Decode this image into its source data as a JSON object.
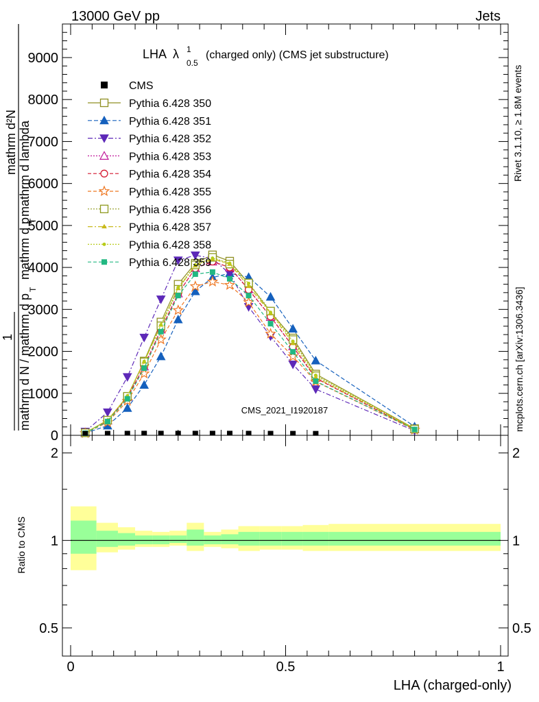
{
  "header": {
    "left": "13000 GeV pp",
    "right": "Jets"
  },
  "plot_title": {
    "main": "LHA",
    "lambda": "λ",
    "sup": "1",
    "sub": "0.5",
    "rest": "(charged only) (CMS jet substructure)"
  },
  "side_labels": {
    "rivet": "Rivet 3.1.10, ≥ 1.8M events",
    "mcplots": "mcplots.cern.ch [arXiv:1306.3436]"
  },
  "watermark": "CMS_2021_I1920187",
  "ylabel": {
    "numerator": "mathrm d²N",
    "lhs_one": "1",
    "lhs_den": "mathrm d N / mathrm d p",
    "lhs_sub": "T",
    "den_part1": "mathrm d p",
    "den_sub": "T",
    "den_part2": "mathrm d lambda"
  },
  "ratio_ylabel": "Ratio to CMS",
  "chart_data": {
    "type": "line",
    "xlabel": "LHA (charged-only)",
    "ylabel": "1 / (mathrm d N / mathrm d p_T) · mathrm d²N / (mathrm d p_T mathrm d lambda)",
    "xlim": [
      0,
      1
    ],
    "ylim": [
      0,
      9800
    ],
    "x_ticks": [
      "0",
      "0.5",
      "1"
    ],
    "y_ticks": [
      "0",
      "1000",
      "2000",
      "3000",
      "4000",
      "5000",
      "6000",
      "7000",
      "8000",
      "9000"
    ],
    "x_centers": [
      0.034,
      0.086,
      0.132,
      0.171,
      0.21,
      0.25,
      0.29,
      0.33,
      0.37,
      0.414,
      0.465,
      0.517,
      0.57,
      0.8
    ],
    "reference": {
      "name": "CMS",
      "x": [
        0.034,
        0.086,
        0.132,
        0.171,
        0.21,
        0.25,
        0.29,
        0.33,
        0.37,
        0.414,
        0.465,
        0.517,
        0.57
      ],
      "values": [
        5,
        8,
        9,
        10,
        10,
        10,
        10,
        10,
        10,
        9,
        8,
        7,
        6
      ]
    },
    "series": [
      {
        "name": "Pythia 6.428 350",
        "color": "#8f8f22",
        "dash": "",
        "marker": "square-open",
        "values": [
          60,
          360,
          920,
          1770,
          2700,
          3600,
          4100,
          4300,
          4150,
          3620,
          2930,
          2320,
          1460,
          160
        ]
      },
      {
        "name": "Pythia 6.428 351",
        "color": "#1560bd",
        "dash": "6,3",
        "marker": "triangle-up",
        "values": [
          50,
          230,
          650,
          1200,
          1880,
          2760,
          3430,
          3760,
          3860,
          3770,
          3300,
          2540,
          1780,
          210
        ]
      },
      {
        "name": "Pythia 6.428 352",
        "color": "#5d28b8",
        "dash": "7,3,2,3",
        "marker": "triangle-down",
        "values": [
          90,
          550,
          1390,
          2330,
          3240,
          4170,
          4290,
          4210,
          3850,
          3060,
          2360,
          1690,
          1100,
          110
        ]
      },
      {
        "name": "Pythia 6.428 353",
        "color": "#c0189a",
        "dash": "2,2",
        "marker": "triangle-open",
        "values": [
          60,
          350,
          910,
          1640,
          2520,
          3380,
          3980,
          4140,
          4000,
          3480,
          2820,
          2120,
          1370,
          140
        ]
      },
      {
        "name": "Pythia 6.428 354",
        "color": "#d4162f",
        "dash": "5,3",
        "marker": "circle-open",
        "values": [
          60,
          350,
          910,
          1640,
          2520,
          3380,
          3980,
          4140,
          4000,
          3470,
          2830,
          2110,
          1360,
          140
        ]
      },
      {
        "name": "Pythia 6.428 355",
        "color": "#ee7722",
        "dash": "5,3",
        "marker": "star-open",
        "values": [
          50,
          310,
          820,
          1470,
          2280,
          2980,
          3550,
          3660,
          3580,
          3170,
          2420,
          1880,
          1280,
          130
        ]
      },
      {
        "name": "Pythia 6.428 356",
        "color": "#8f9a1f",
        "dash": "2,2",
        "marker": "square-open",
        "values": [
          60,
          360,
          930,
          1750,
          2610,
          3480,
          4060,
          4240,
          4080,
          3630,
          2960,
          2280,
          1420,
          150
        ]
      },
      {
        "name": "Pythia 6.428 357",
        "color": "#c8b91a",
        "dash": "7,3,2,3",
        "marker": "tri-small",
        "values": [
          60,
          360,
          930,
          1750,
          2630,
          3500,
          4040,
          4200,
          4080,
          3550,
          2910,
          2190,
          1380,
          150
        ]
      },
      {
        "name": "Pythia 6.428 358",
        "color": "#b8cc1a",
        "dash": "2,2",
        "marker": "dot",
        "values": [
          60,
          360,
          940,
          1760,
          2630,
          3520,
          4060,
          4220,
          4100,
          3620,
          2930,
          2240,
          1430,
          160
        ]
      },
      {
        "name": "Pythia 6.428 359",
        "color": "#22b882",
        "dash": "5,3",
        "marker": "square-filled",
        "values": [
          50,
          330,
          870,
          1600,
          2470,
          3330,
          3840,
          3890,
          3730,
          3330,
          2660,
          1990,
          1290,
          140
        ]
      }
    ],
    "ratio": {
      "ylabel": "Ratio to CMS",
      "ylim": [
        0.4,
        2.3
      ],
      "y_ticks": [
        "0.5",
        "1",
        "2"
      ],
      "bin_edges": [
        0.0,
        0.06,
        0.11,
        0.15,
        0.19,
        0.23,
        0.27,
        0.31,
        0.35,
        0.39,
        0.44,
        0.49,
        0.54,
        0.6,
        1.0
      ],
      "band_outer_low": [
        0.79,
        0.91,
        0.93,
        0.95,
        0.95,
        0.96,
        0.92,
        0.95,
        0.94,
        0.92,
        0.93,
        0.93,
        0.92,
        0.92
      ],
      "band_outer_high": [
        1.31,
        1.15,
        1.11,
        1.08,
        1.07,
        1.08,
        1.15,
        1.07,
        1.09,
        1.12,
        1.12,
        1.12,
        1.13,
        1.14
      ],
      "band_inner_low": [
        0.9,
        0.95,
        0.96,
        0.97,
        0.97,
        0.98,
        0.96,
        0.97,
        0.97,
        0.96,
        0.96,
        0.96,
        0.96,
        0.96
      ],
      "band_inner_high": [
        1.17,
        1.08,
        1.06,
        1.04,
        1.04,
        1.04,
        1.09,
        1.04,
        1.05,
        1.07,
        1.07,
        1.07,
        1.07,
        1.07
      ],
      "colors": {
        "outer": "#ffff99",
        "inner": "#99ff99"
      }
    }
  }
}
